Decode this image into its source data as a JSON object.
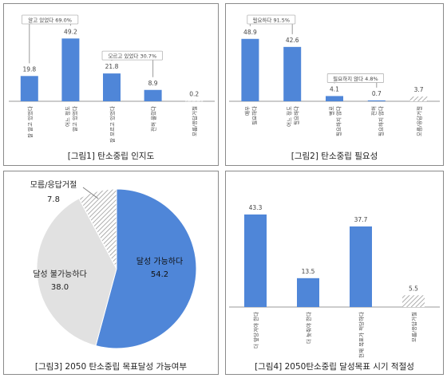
{
  "colors": {
    "bar_blue": "#4f86d8",
    "bar_gray_hatched": "#c9c9c9",
    "pie_light_gray": "#e1e1e1",
    "axis": "#9a9a9a",
    "bracket": "#9a9a9a"
  },
  "chart_data": [
    {
      "type": "bar",
      "caption": "[그림1] 탄소중립 인지도",
      "categories": [
        "잘 알고 있었다",
        "어느 정도\n알고 있었다",
        "잘 모르고 있었다",
        "전혀 몰랐다",
        "모름/응답거절"
      ],
      "values": [
        19.8,
        49.2,
        21.8,
        8.9,
        0.2
      ],
      "value_labels": [
        "19.8",
        "49.2",
        "21.8",
        "8.9",
        "0.2"
      ],
      "hatched": [
        false,
        false,
        false,
        false,
        true
      ],
      "ylim": [
        0,
        60
      ],
      "brackets": [
        {
          "label": "알고 있었다 69.0%",
          "from": 0,
          "to": 1
        },
        {
          "label": "모르고 있었다 30.7%",
          "from": 2,
          "to": 3
        }
      ]
    },
    {
      "type": "bar",
      "caption": "[그림2] 탄소중립 필요성",
      "categories": [
        "매우\n필요하다",
        "어느 정도\n필요하다",
        "별로\n필요하지 않다",
        "전혀\n필요하지 않다",
        "모름/응답거절"
      ],
      "values": [
        48.9,
        42.6,
        4.1,
        0.7,
        3.7
      ],
      "value_labels": [
        "48.9",
        "42.6",
        "4.1",
        "0.7",
        "3.7"
      ],
      "hatched": [
        false,
        false,
        false,
        false,
        true
      ],
      "ylim": [
        0,
        60
      ],
      "brackets": [
        {
          "label": "필요하다 91.5%",
          "from": 0,
          "to": 1
        },
        {
          "label": "필요하지 않다 4.8%",
          "from": 2,
          "to": 3
        }
      ]
    },
    {
      "type": "pie",
      "caption": "[그림3] 2050 탄소중립 목표달성 가능여부",
      "slices": [
        {
          "label": "달성 가능하다",
          "value": 54.2
        },
        {
          "label": "달성 불가능하다",
          "value": 38.0
        },
        {
          "label": "모름/응답거절",
          "value": 7.8
        }
      ]
    },
    {
      "type": "bar",
      "caption": "[그림4] 2050탄소중립 달성목표 시기 적절성",
      "categories": [
        "더 앞당겨야 한다",
        "더 늦춰야 한다",
        "현재 목표가 적당하다",
        "모름/응답거절"
      ],
      "values": [
        43.3,
        13.5,
        37.7,
        5.5
      ],
      "value_labels": [
        "43.3",
        "13.5",
        "37.7",
        "5.5"
      ],
      "hatched": [
        false,
        false,
        false,
        true
      ],
      "ylim": [
        0,
        50
      ],
      "brackets": []
    }
  ]
}
